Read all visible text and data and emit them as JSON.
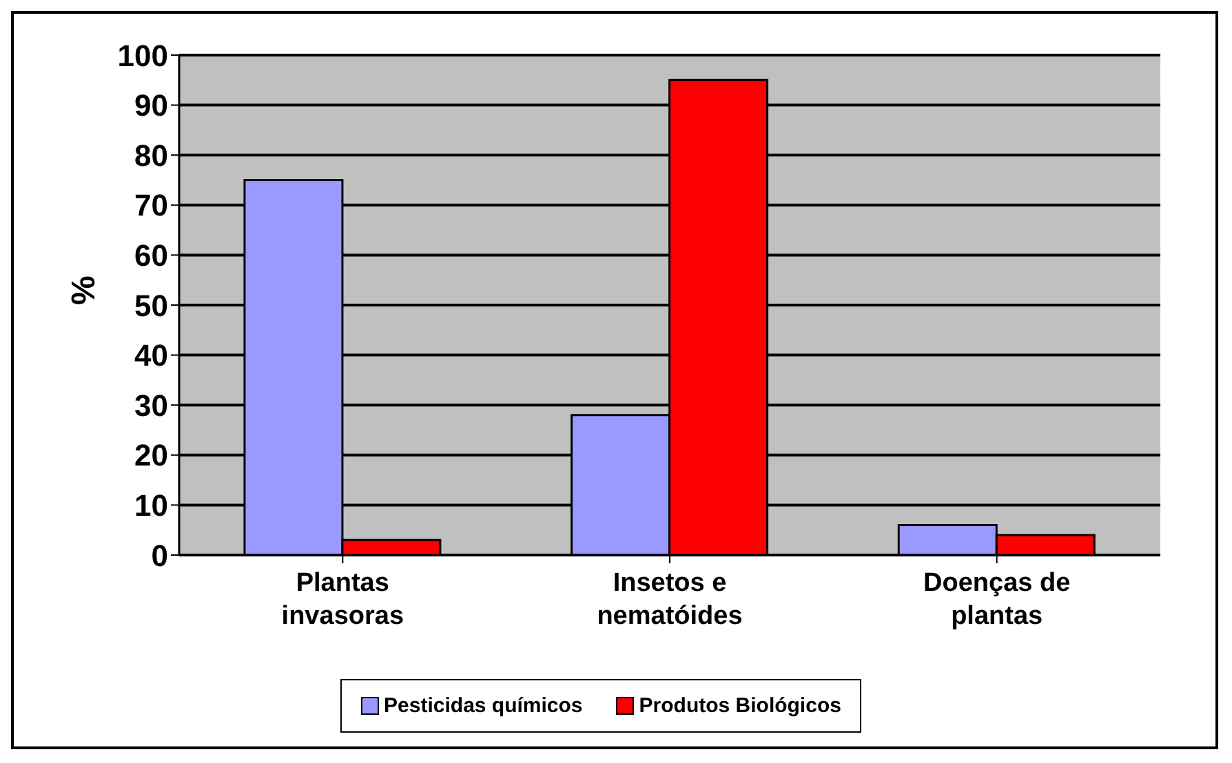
{
  "chart_data": {
    "type": "bar",
    "ylabel": "%",
    "categories": [
      "Plantas invasoras",
      "Insetos e nematóides",
      "Doenças de plantas"
    ],
    "series": [
      {
        "name": "Pesticidas químicos",
        "color": "#9999ff",
        "values": [
          75,
          28,
          6
        ]
      },
      {
        "name": "Produtos Biológicos",
        "color": "#ff0000",
        "values": [
          3,
          95,
          4
        ]
      }
    ],
    "ylim": [
      0,
      100
    ],
    "yticks": [
      0,
      10,
      20,
      30,
      40,
      50,
      60,
      70,
      80,
      90,
      100
    ],
    "grid": "y",
    "legend": "bottom"
  }
}
